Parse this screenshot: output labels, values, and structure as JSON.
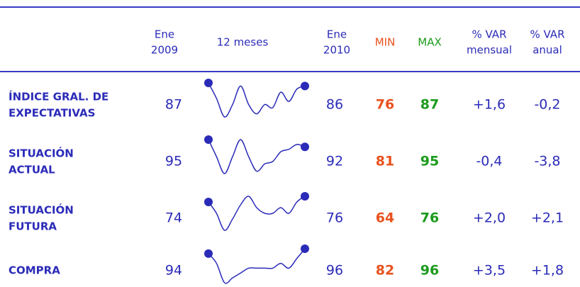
{
  "table": {
    "header": [
      [
        "Ene",
        "2009"
      ],
      [
        "12 meses"
      ],
      [
        "Ene",
        "2010"
      ],
      [
        "MIN"
      ],
      [
        "MAX"
      ],
      [
        "% VAR",
        "mensual"
      ],
      [
        "% VAR",
        "anual"
      ]
    ],
    "rows": [
      {
        "label": [
          "ÍNDICE GRAL. DE",
          "EXPECTATIVAS"
        ],
        "ene2009": 87,
        "series": [
          87,
          82,
          76,
          80,
          86,
          80,
          77,
          80,
          79,
          84,
          81,
          85,
          86
        ],
        "ene2010": 86,
        "min": 76,
        "max": 87,
        "var_mensual": "+1,6",
        "var_anual": "-0,2"
      },
      {
        "label": [
          "SITUACIÓN",
          "ACTUAL"
        ],
        "ene2009": 95,
        "series": [
          95,
          88,
          81,
          88,
          95,
          88,
          82,
          85,
          86,
          90,
          91,
          93,
          92
        ],
        "ene2010": 92,
        "min": 81,
        "max": 95,
        "var_mensual": "-0,4",
        "var_anual": "-3,8"
      },
      {
        "label": [
          "SITUACIÓN",
          "FUTURA"
        ],
        "ene2009": 74,
        "series": [
          74,
          70,
          64,
          68,
          73,
          76,
          72,
          70,
          70,
          72,
          70,
          74,
          76
        ],
        "ene2010": 76,
        "min": 64,
        "max": 76,
        "var_mensual": "+2,0",
        "var_anual": "+2,1"
      },
      {
        "label": [
          "COMPRA"
        ],
        "ene2009": 94,
        "series": [
          94,
          90,
          82,
          84,
          86,
          88,
          88,
          88,
          88,
          90,
          88,
          92,
          96
        ],
        "ene2010": 96,
        "min": 82,
        "max": 96,
        "var_mensual": "+3,5",
        "var_anual": "+1,8"
      }
    ],
    "colors": {
      "text": "#2b2bb8",
      "min": "#e8521e",
      "max": "#1c9a1c",
      "line": "#3a3ac8"
    }
  }
}
